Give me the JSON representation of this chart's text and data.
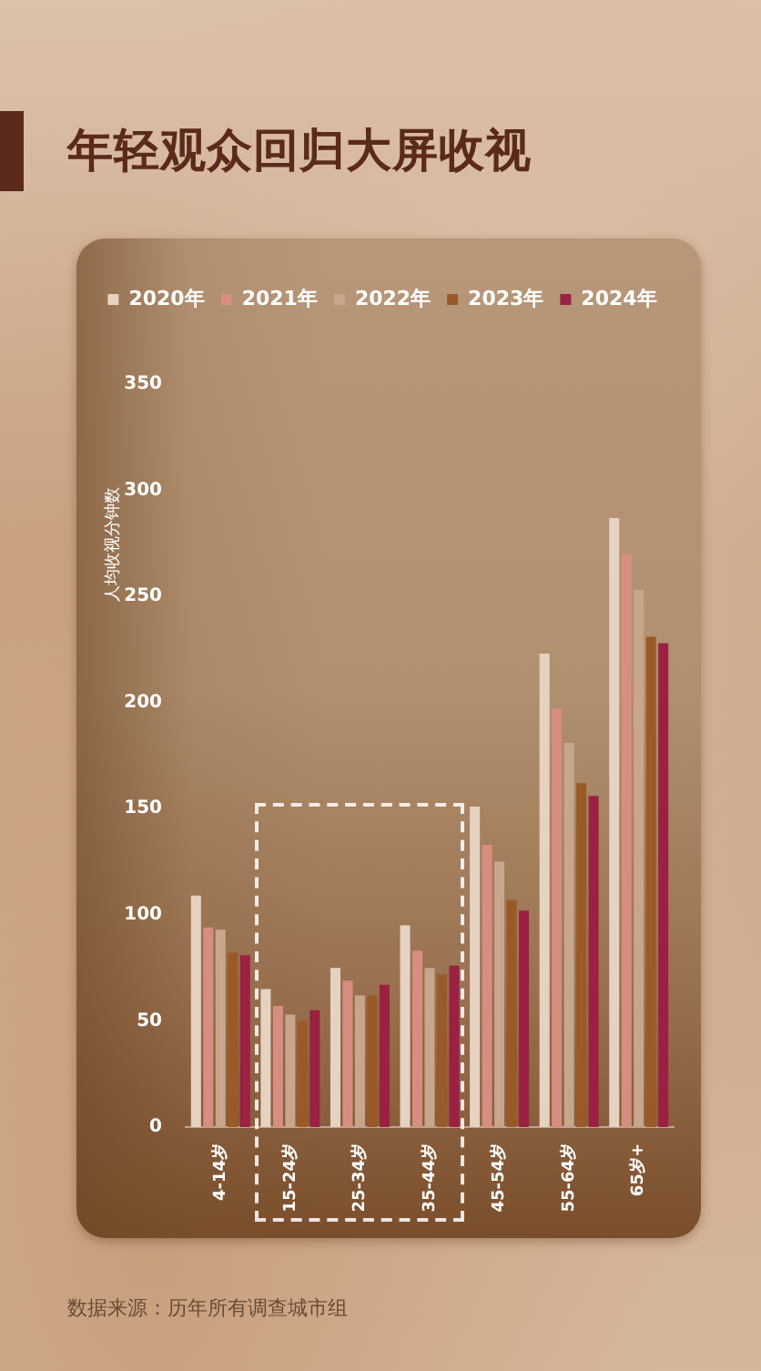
{
  "chart_data": {
    "type": "bar",
    "title": "年轻观众回归大屏收视",
    "ylabel": "人均收视分钟数",
    "categories": [
      "4-14岁",
      "15-24岁",
      "25-34岁",
      "35-44岁",
      "45-54岁",
      "55-64岁",
      "65岁+"
    ],
    "series": [
      {
        "name": "2020年",
        "color": "#e6d2c0",
        "values": [
          109,
          65,
          75,
          95,
          151,
          223,
          287
        ]
      },
      {
        "name": "2021年",
        "color": "#d68e80",
        "values": [
          94,
          57,
          69,
          83,
          133,
          197,
          270
        ]
      },
      {
        "name": "2022年",
        "color": "#c7a68c",
        "values": [
          93,
          53,
          62,
          75,
          125,
          181,
          253
        ]
      },
      {
        "name": "2023年",
        "color": "#9a5a28",
        "values": [
          82,
          50,
          62,
          72,
          107,
          162,
          231
        ]
      },
      {
        "name": "2024年",
        "color": "#9b2142",
        "values": [
          81,
          55,
          67,
          76,
          102,
          156,
          228
        ]
      }
    ],
    "ylim": [
      0,
      350
    ],
    "yticks": [
      0,
      50,
      100,
      150,
      200,
      250,
      300,
      350
    ],
    "grid": false,
    "legend": "top",
    "annotations": [
      "数据来源：历年所有调查城市组"
    ]
  }
}
